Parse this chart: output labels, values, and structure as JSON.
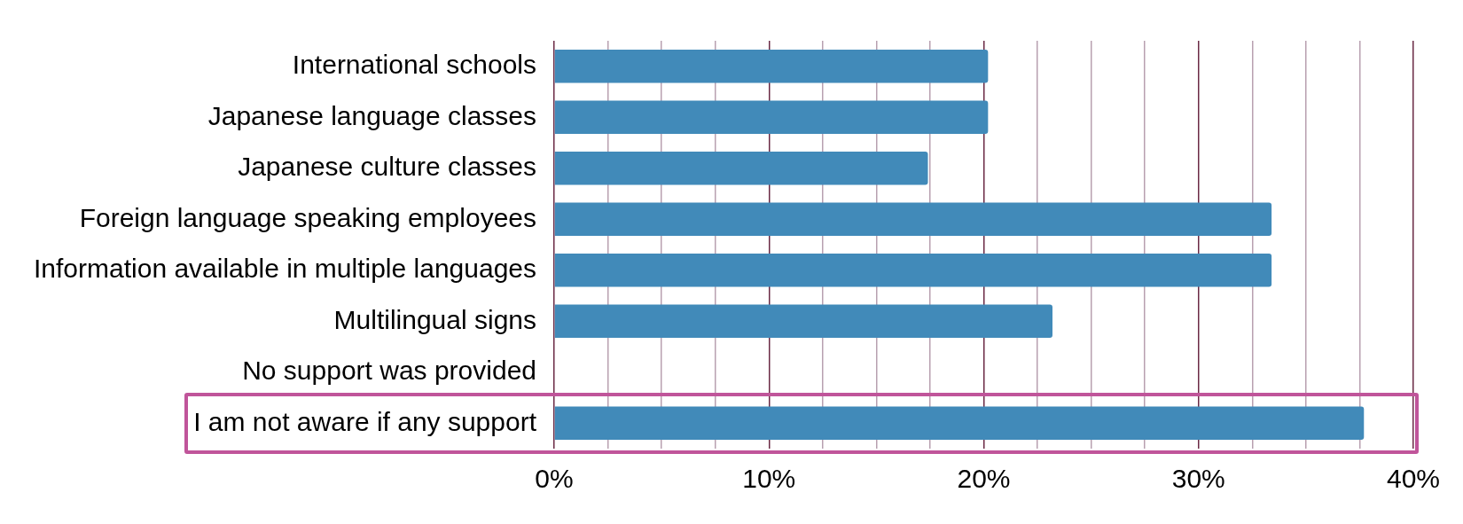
{
  "chart_data": {
    "type": "bar",
    "orientation": "horizontal",
    "categories": [
      "International schools",
      "Japanese language classes",
      "Japanese culture classes",
      "Foreign language speaking employees",
      "Information available in multiple languages",
      "Multilingual signs",
      "No support was provided",
      "I am not aware if any support"
    ],
    "values": [
      20.2,
      20.2,
      17.4,
      33.4,
      33.4,
      23.2,
      0,
      37.7
    ],
    "color": "#418ab9",
    "xlim": [
      0,
      40
    ],
    "xticks": [
      {
        "value": 0,
        "label": "0%"
      },
      {
        "value": 2.5,
        "label": null
      },
      {
        "value": 5,
        "label": null
      },
      {
        "value": 7.5,
        "label": null
      },
      {
        "value": 10,
        "label": "10%"
      },
      {
        "value": 12.5,
        "label": null
      },
      {
        "value": 15,
        "label": null
      },
      {
        "value": 17.5,
        "label": null
      },
      {
        "value": 20,
        "label": "20%"
      },
      {
        "value": 22.5,
        "label": null
      },
      {
        "value": 25,
        "label": null
      },
      {
        "value": 27.5,
        "label": null
      },
      {
        "value": 30,
        "label": "30%"
      },
      {
        "value": 32.5,
        "label": null
      },
      {
        "value": 35,
        "label": null
      },
      {
        "value": 37.5,
        "label": null
      },
      {
        "value": 40,
        "label": "40%"
      }
    ],
    "grid": "x"
  }
}
